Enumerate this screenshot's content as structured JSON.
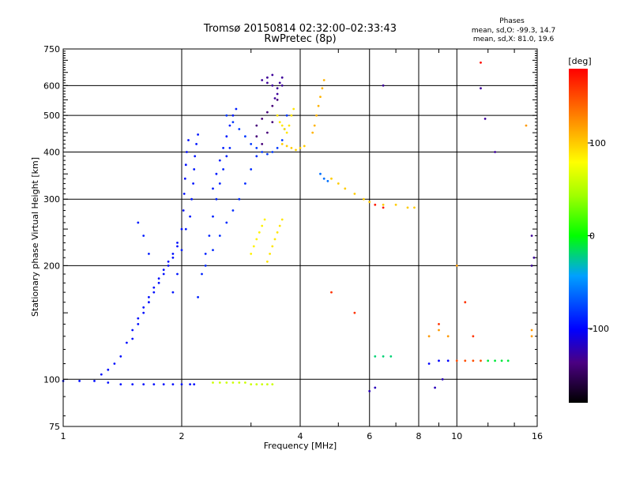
{
  "chart_data": {
    "type": "scatter",
    "title": "Tromsø 20150814 02:32:00–02:33:43",
    "subtitle": "RwPretec (8p)",
    "xlabel": "Frequency [MHz]",
    "ylabel": "Stationary phase Virtual Height [km]",
    "x_scale": "log",
    "y_scale": "log",
    "xlim": [
      1,
      16
    ],
    "ylim": [
      75,
      750
    ],
    "xticks": [
      1,
      2,
      4,
      6,
      8,
      10,
      16
    ],
    "xtick_labels": [
      "1",
      "2",
      "4",
      "6",
      "8",
      "10",
      "16"
    ],
    "yticks": [
      75,
      100,
      200,
      300,
      400,
      500,
      600,
      750
    ],
    "ytick_labels": [
      "75",
      "100",
      "200",
      "300",
      "400",
      "500",
      "600",
      "750"
    ],
    "grid": true,
    "colorbar": {
      "label": "[deg]",
      "range": [
        -180,
        180
      ],
      "ticks": [
        -100,
        0,
        100
      ],
      "tick_labels": [
        "-100",
        "0",
        "100"
      ]
    },
    "phases_box": {
      "heading": "Phases",
      "line_o": "mean, sd,O: -99.3, 14.7",
      "line_x": "mean, sd,X:  81.0, 19.6"
    },
    "traces": [
      {
        "phase": -95,
        "points": [
          [
            1.0,
            99
          ],
          [
            1.1,
            99
          ],
          [
            1.2,
            99
          ],
          [
            1.3,
            98
          ],
          [
            1.4,
            97
          ],
          [
            1.5,
            97
          ],
          [
            1.6,
            97
          ],
          [
            1.7,
            97
          ],
          [
            1.8,
            97
          ],
          [
            1.9,
            97
          ],
          [
            2.0,
            97
          ],
          [
            2.1,
            97
          ],
          [
            2.15,
            97
          ]
        ]
      },
      {
        "phase": -95,
        "points": [
          [
            1.25,
            103
          ],
          [
            1.3,
            106
          ],
          [
            1.35,
            110
          ],
          [
            1.4,
            115
          ],
          [
            1.45,
            125
          ],
          [
            1.5,
            135
          ],
          [
            1.55,
            145
          ],
          [
            1.6,
            155
          ],
          [
            1.65,
            165
          ],
          [
            1.7,
            175
          ],
          [
            1.75,
            185
          ],
          [
            1.8,
            195
          ],
          [
            1.85,
            205
          ],
          [
            1.9,
            215
          ],
          [
            1.95,
            225
          ]
        ]
      },
      {
        "phase": -95,
        "points": [
          [
            1.5,
            128
          ],
          [
            1.55,
            140
          ],
          [
            1.6,
            150
          ],
          [
            1.65,
            160
          ],
          [
            1.7,
            170
          ],
          [
            1.75,
            180
          ],
          [
            1.8,
            190
          ],
          [
            1.85,
            200
          ],
          [
            1.9,
            210
          ],
          [
            1.95,
            230
          ],
          [
            2.0,
            250
          ],
          [
            2.02,
            280
          ],
          [
            2.03,
            310
          ],
          [
            2.04,
            340
          ],
          [
            2.05,
            370
          ],
          [
            2.06,
            400
          ],
          [
            2.08,
            430
          ]
        ]
      },
      {
        "phase": -92,
        "points": [
          [
            1.9,
            170
          ],
          [
            1.95,
            190
          ],
          [
            2.0,
            220
          ],
          [
            2.05,
            250
          ],
          [
            2.1,
            270
          ],
          [
            2.12,
            300
          ],
          [
            2.14,
            330
          ],
          [
            2.15,
            360
          ],
          [
            2.16,
            390
          ],
          [
            2.18,
            420
          ],
          [
            2.2,
            445
          ]
        ]
      },
      {
        "phase": -90,
        "points": [
          [
            1.55,
            260
          ],
          [
            1.6,
            240
          ],
          [
            1.65,
            215
          ]
        ]
      },
      {
        "phase": -88,
        "points": [
          [
            2.2,
            165
          ],
          [
            2.25,
            190
          ],
          [
            2.3,
            215
          ],
          [
            2.35,
            240
          ],
          [
            2.4,
            270
          ],
          [
            2.45,
            300
          ],
          [
            2.5,
            330
          ],
          [
            2.55,
            360
          ],
          [
            2.6,
            390
          ],
          [
            2.65,
            410
          ]
        ]
      },
      {
        "phase": -85,
        "points": [
          [
            2.3,
            200
          ],
          [
            2.4,
            220
          ],
          [
            2.5,
            240
          ],
          [
            2.6,
            260
          ],
          [
            2.7,
            280
          ],
          [
            2.8,
            300
          ],
          [
            2.9,
            330
          ],
          [
            3.0,
            360
          ],
          [
            3.1,
            390
          ]
        ]
      },
      {
        "phase": -90,
        "points": [
          [
            2.4,
            320
          ],
          [
            2.45,
            350
          ],
          [
            2.5,
            380
          ],
          [
            2.55,
            410
          ],
          [
            2.6,
            440
          ],
          [
            2.65,
            470
          ],
          [
            2.7,
            500
          ],
          [
            2.75,
            520
          ]
        ]
      },
      {
        "phase": -80,
        "points": [
          [
            2.6,
            500
          ],
          [
            2.7,
            480
          ],
          [
            2.8,
            460
          ],
          [
            2.9,
            440
          ],
          [
            3.0,
            420
          ],
          [
            3.1,
            410
          ],
          [
            3.2,
            400
          ],
          [
            3.3,
            395
          ],
          [
            3.4,
            400
          ],
          [
            3.5,
            410
          ],
          [
            3.6,
            430
          ],
          [
            3.65,
            460
          ],
          [
            3.7,
            500
          ]
        ]
      },
      {
        "phase": -130,
        "points": [
          [
            3.2,
            620
          ],
          [
            3.3,
            610
          ],
          [
            3.4,
            600
          ],
          [
            3.5,
            590
          ],
          [
            3.55,
            610
          ],
          [
            3.6,
            630
          ],
          [
            3.4,
            640
          ],
          [
            3.3,
            630
          ],
          [
            3.5,
            570
          ],
          [
            3.45,
            555
          ],
          [
            3.6,
            600
          ]
        ]
      },
      {
        "phase": -140,
        "points": [
          [
            3.1,
            470
          ],
          [
            3.2,
            490
          ],
          [
            3.3,
            510
          ],
          [
            3.4,
            530
          ],
          [
            3.5,
            550
          ],
          [
            3.3,
            450
          ],
          [
            3.2,
            420
          ],
          [
            3.1,
            440
          ],
          [
            3.4,
            480
          ]
        ]
      },
      {
        "phase": 90,
        "points": [
          [
            3.5,
            500
          ],
          [
            3.55,
            480
          ],
          [
            3.6,
            470
          ],
          [
            3.65,
            460
          ],
          [
            3.7,
            450
          ],
          [
            3.75,
            470
          ],
          [
            3.8,
            500
          ],
          [
            3.85,
            520
          ]
        ]
      },
      {
        "phase": 100,
        "points": [
          [
            3.6,
            420
          ],
          [
            3.7,
            415
          ],
          [
            3.8,
            410
          ],
          [
            3.9,
            405
          ],
          [
            4.0,
            410
          ],
          [
            4.1,
            415
          ]
        ]
      },
      {
        "phase": 110,
        "points": [
          [
            4.3,
            450
          ],
          [
            4.35,
            470
          ],
          [
            4.4,
            500
          ],
          [
            4.45,
            530
          ],
          [
            4.5,
            560
          ],
          [
            4.55,
            590
          ],
          [
            4.6,
            620
          ]
        ]
      },
      {
        "phase": 85,
        "points": [
          [
            3.0,
            215
          ],
          [
            3.05,
            225
          ],
          [
            3.1,
            235
          ],
          [
            3.15,
            245
          ],
          [
            3.2,
            255
          ],
          [
            3.25,
            265
          ]
        ]
      },
      {
        "phase": 90,
        "points": [
          [
            3.3,
            205
          ],
          [
            3.35,
            215
          ],
          [
            3.4,
            225
          ],
          [
            3.45,
            235
          ],
          [
            3.5,
            245
          ],
          [
            3.55,
            255
          ],
          [
            3.6,
            265
          ]
        ]
      },
      {
        "phase": 60,
        "points": [
          [
            2.4,
            98
          ],
          [
            2.5,
            98
          ],
          [
            2.6,
            98
          ],
          [
            2.7,
            98
          ],
          [
            2.8,
            98
          ],
          [
            2.9,
            98
          ],
          [
            3.0,
            97
          ],
          [
            3.1,
            97
          ],
          [
            3.2,
            97
          ],
          [
            3.3,
            97
          ],
          [
            3.4,
            97
          ]
        ]
      },
      {
        "phase": 100,
        "points": [
          [
            4.8,
            340
          ],
          [
            5.0,
            330
          ],
          [
            5.2,
            320
          ],
          [
            5.5,
            310
          ],
          [
            5.8,
            300
          ],
          [
            6.0,
            295
          ],
          [
            6.5,
            290
          ],
          [
            7.0,
            290
          ],
          [
            7.5,
            285
          ],
          [
            7.8,
            285
          ]
        ]
      },
      {
        "phase": -60,
        "points": [
          [
            4.5,
            350
          ],
          [
            4.6,
            340
          ],
          [
            4.7,
            335
          ]
        ]
      },
      {
        "phase": -20,
        "points": [
          [
            6.2,
            115
          ],
          [
            6.5,
            115
          ],
          [
            6.8,
            115
          ]
        ]
      },
      {
        "phase": 150,
        "points": [
          [
            10.0,
            112
          ],
          [
            10.5,
            112
          ],
          [
            11.0,
            112
          ],
          [
            11.5,
            112
          ]
        ]
      },
      {
        "phase": -100,
        "points": [
          [
            8.5,
            110
          ],
          [
            9.0,
            112
          ],
          [
            9.5,
            112
          ]
        ]
      },
      {
        "phase": -10,
        "points": [
          [
            12.0,
            112
          ],
          [
            12.5,
            112
          ],
          [
            13.0,
            112
          ],
          [
            13.5,
            112
          ]
        ]
      },
      {
        "phase": 120,
        "points": [
          [
            8.5,
            130
          ],
          [
            9.0,
            135
          ],
          [
            9.5,
            130
          ]
        ]
      },
      {
        "phase": -120,
        "points": [
          [
            6.0,
            93
          ],
          [
            6.2,
            95
          ],
          [
            8.8,
            95
          ],
          [
            9.2,
            100
          ]
        ]
      },
      {
        "phase": 170,
        "points": [
          [
            6.5,
            285
          ],
          [
            6.2,
            290
          ]
        ]
      },
      {
        "phase": -130,
        "points": [
          [
            6.5,
            600
          ],
          [
            11.5,
            590
          ],
          [
            11.8,
            490
          ],
          [
            12.5,
            400
          ],
          [
            15.5,
            200
          ],
          [
            15.5,
            240
          ],
          [
            15.7,
            210
          ]
        ]
      },
      {
        "phase": 175,
        "points": [
          [
            11.5,
            690
          ]
        ]
      },
      {
        "phase": 120,
        "points": [
          [
            10.0,
            200
          ],
          [
            15.0,
            470
          ],
          [
            15.5,
            135
          ],
          [
            15.5,
            130
          ]
        ]
      },
      {
        "phase": 160,
        "points": [
          [
            4.8,
            170
          ],
          [
            5.5,
            150
          ],
          [
            10.5,
            160
          ],
          [
            11.0,
            130
          ],
          [
            9.0,
            140
          ]
        ]
      }
    ]
  }
}
